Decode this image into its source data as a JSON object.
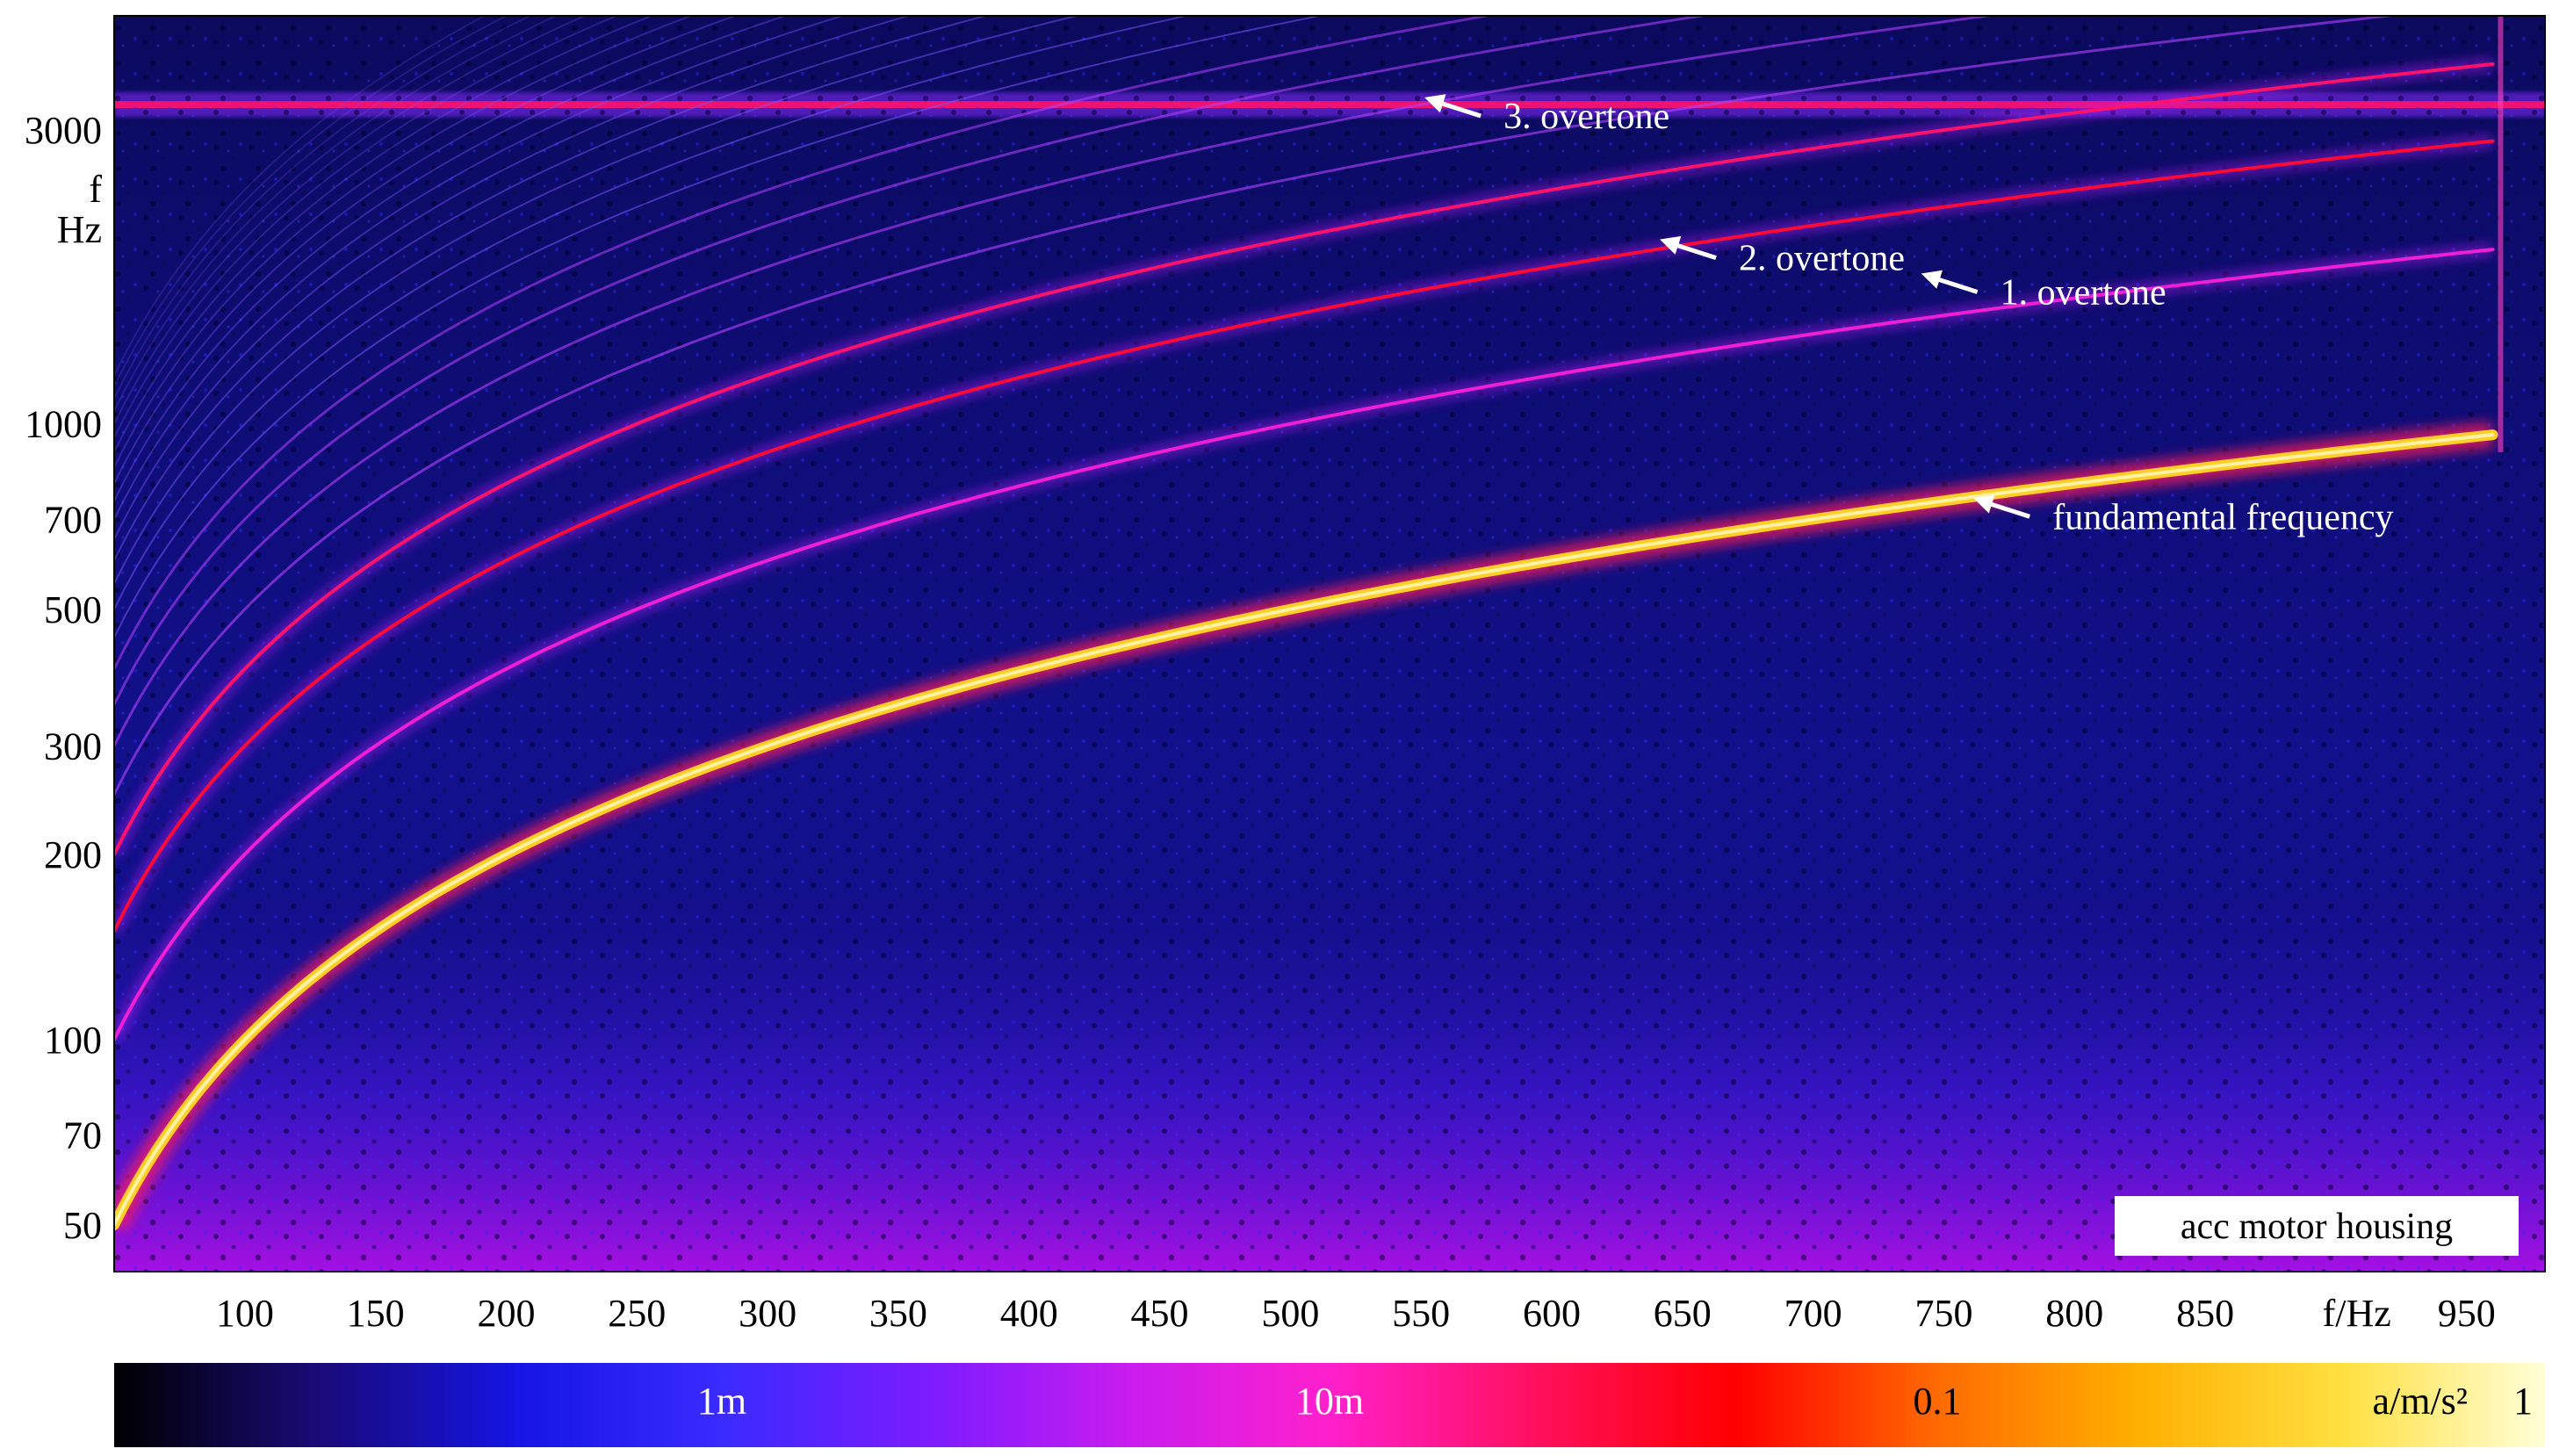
{
  "chart_data": {
    "type": "heatmap",
    "subtype": "spectrogram",
    "x": {
      "label": "f/Hz",
      "range": [
        50,
        980
      ],
      "ticks": [
        100,
        150,
        200,
        250,
        300,
        350,
        400,
        450,
        500,
        550,
        600,
        650,
        700,
        750,
        800,
        850,
        950
      ]
    },
    "y": {
      "label_line1": "f",
      "label_line2": "Hz",
      "scale": "log",
      "range": [
        42,
        4600
      ],
      "ticks": [
        50,
        70,
        100,
        200,
        300,
        500,
        700,
        1000,
        3000
      ]
    },
    "colorbar": {
      "unit": "a/m/s²",
      "scale": "log",
      "range": [
        0.0001,
        1
      ],
      "ticks": [
        {
          "value": 0.001,
          "label": "1m"
        },
        {
          "value": 0.01,
          "label": "10m"
        },
        {
          "value": 0.1,
          "label": "0.1"
        },
        {
          "value": 1,
          "label": "1"
        }
      ],
      "colors": [
        "#000000",
        "#1a0a78",
        "#1515e6",
        "#3a2bff",
        "#7a1cff",
        "#c81cf0",
        "#ff20cc",
        "#ff1060",
        "#ff0000",
        "#ff6a00",
        "#ffb000",
        "#ffe040",
        "#ffffd8"
      ]
    },
    "series": [
      {
        "name": "fundamental frequency",
        "multiple": 1,
        "level": 0.35,
        "points": [
          [
            50,
            50
          ],
          [
            960,
            1000
          ]
        ]
      },
      {
        "name": "1. overtone",
        "multiple": 2,
        "level": 0.008,
        "points": [
          [
            50,
            100
          ],
          [
            960,
            2000
          ]
        ]
      },
      {
        "name": "2. overtone",
        "multiple": 3,
        "level": 0.03,
        "points": [
          [
            50,
            150
          ],
          [
            960,
            3000
          ]
        ]
      },
      {
        "name": "3. overtone",
        "multiple": 4,
        "level": 0.02,
        "points": [
          [
            50,
            200
          ],
          [
            960,
            4000
          ]
        ]
      }
    ],
    "constant_band": {
      "frequency": 3300,
      "level": 0.02
    },
    "annotations": [
      {
        "text": "3. overtone",
        "target": [
          550,
          3400
        ]
      },
      {
        "text": "2. overtone",
        "target": [
          640,
          2000
        ]
      },
      {
        "text": "1. overtone",
        "target": [
          740,
          1760
        ]
      },
      {
        "text": "fundamental frequency",
        "target": [
          760,
          760
        ]
      }
    ],
    "badge": "acc motor housing"
  }
}
